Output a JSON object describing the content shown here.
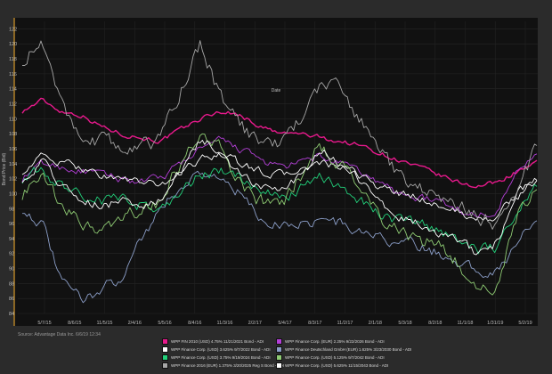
{
  "chart_data": {
    "type": "line",
    "title": "",
    "xlabel": "Date",
    "ylabel": "Bond Price (Bid)",
    "ylim": [
      84,
      123
    ],
    "yticks": [
      84,
      86,
      88,
      90,
      92,
      94,
      96,
      98,
      100,
      102,
      104,
      106,
      108,
      110,
      112,
      114,
      116,
      118,
      120,
      122
    ],
    "xticks": [
      "5/7/15",
      "8/6/15",
      "11/5/15",
      "2/4/16",
      "5/5/16",
      "8/4/16",
      "11/3/16",
      "2/2/17",
      "5/4/17",
      "8/3/17",
      "11/2/17",
      "2/1/18",
      "5/3/18",
      "8/2/18",
      "11/1/18",
      "1/31/19",
      "5/2/19"
    ],
    "grid": true,
    "legend_position": "bottom",
    "source": "Source: Advantage Data Inc. 6/6/19 12:34",
    "x": [
      "2015-03",
      "2015-05",
      "2015-07",
      "2015-09",
      "2015-11",
      "2016-01",
      "2016-03",
      "2016-05",
      "2016-07",
      "2016-09",
      "2016-11",
      "2017-01",
      "2017-03",
      "2017-05",
      "2017-07",
      "2017-09",
      "2017-11",
      "2018-01",
      "2018-03",
      "2018-05",
      "2018-07",
      "2018-09",
      "2018-11",
      "2019-01",
      "2019-03",
      "2019-05",
      "2019-06"
    ],
    "series": [
      {
        "name": "WPP FIN 2010 (USD) 4.75% 11/21/2021 Bond - ADI",
        "color": "#e8198c",
        "values": [
          111,
          112.5,
          111,
          110.5,
          109,
          108,
          107.5,
          107,
          108.5,
          110,
          111,
          110.5,
          109,
          108,
          108,
          107.5,
          107,
          106.5,
          105.5,
          104.5,
          103.5,
          102.5,
          101.5,
          101,
          101.5,
          103,
          104
        ]
      },
      {
        "name": "WPP Finance Corp. (EUR) 2.25% 9/22/2026 Bond - ADI",
        "color": "#b43fd8",
        "values": [
          102,
          104,
          103.5,
          103,
          102.5,
          102,
          101.5,
          102,
          104,
          106,
          107,
          106,
          104.5,
          103.5,
          104,
          105,
          104,
          103,
          101.5,
          100,
          99.5,
          99,
          98,
          97,
          98,
          103,
          106
        ]
      },
      {
        "name": "WPP Finance Corp. (USD) 3.625% 9/7/2022 Bond - ADI",
        "color": "#ffffff",
        "values": [
          103,
          105,
          104,
          103.5,
          102.5,
          102,
          101.5,
          101,
          103,
          104.5,
          105.5,
          104,
          103,
          102.5,
          103,
          104,
          103.5,
          102.5,
          101,
          100,
          99.5,
          98.5,
          97.5,
          96.5,
          97,
          100,
          102
        ]
      },
      {
        "name": "WPP Finance Deutschland GmbH (EUR) 1.625% 3/23/2030 Bond - ADI",
        "color": "#8c9fc9",
        "values": [
          98,
          96,
          88,
          86,
          87,
          89,
          94,
          98,
          101,
          103,
          102,
          100,
          96.5,
          96,
          96,
          96.5,
          96,
          95,
          94,
          93.5,
          93,
          92,
          91,
          89.5,
          90,
          93,
          97
        ]
      },
      {
        "name": "WPP Finance Corp. (USD) 3.75% 9/19/2024 Bond - ADI",
        "color": "#22d07a",
        "values": [
          102,
          103,
          101,
          100,
          99,
          99.5,
          98.5,
          98,
          100,
          102.5,
          103,
          102,
          100,
          99.5,
          100.5,
          102,
          101,
          99.5,
          97.5,
          96.5,
          96,
          95,
          94,
          92.5,
          93,
          98,
          101
        ]
      },
      {
        "name": "WPP Finance Corp. (USD) 5.125% 9/7/2042 Bond - ADI",
        "color": "#8fcc74",
        "values": [
          100,
          102,
          98,
          96,
          95,
          96,
          98,
          99,
          104,
          108,
          106,
          101,
          99,
          98,
          102,
          107,
          104,
          101,
          97,
          95,
          94,
          93,
          91,
          87,
          88,
          97,
          101
        ]
      },
      {
        "name": "WPP Finance 2016 (EUR) 1.375% 3/20/2025 Reg S Bond - ADI",
        "color": "#a7a7a7",
        "values": [
          118,
          120,
          112,
          108,
          107,
          106.5,
          106,
          107.5,
          114,
          120,
          113,
          109,
          107,
          106.5,
          110,
          114,
          115,
          110,
          106,
          102.5,
          101,
          100,
          99,
          97,
          96,
          101,
          106
        ]
      },
      {
        "name": "WPP Finance Corp. (USD) 5.625% 11/15/2043 Bond - ADI",
        "color": "#ffffff",
        "values": [
          102,
          104.5,
          101,
          99.5,
          98.5,
          99,
          98.5,
          99,
          103,
          107,
          106,
          102.5,
          101,
          100,
          102.5,
          106,
          104,
          102,
          99,
          97,
          96.5,
          95,
          94,
          92,
          93.5,
          99,
          102
        ]
      }
    ]
  }
}
